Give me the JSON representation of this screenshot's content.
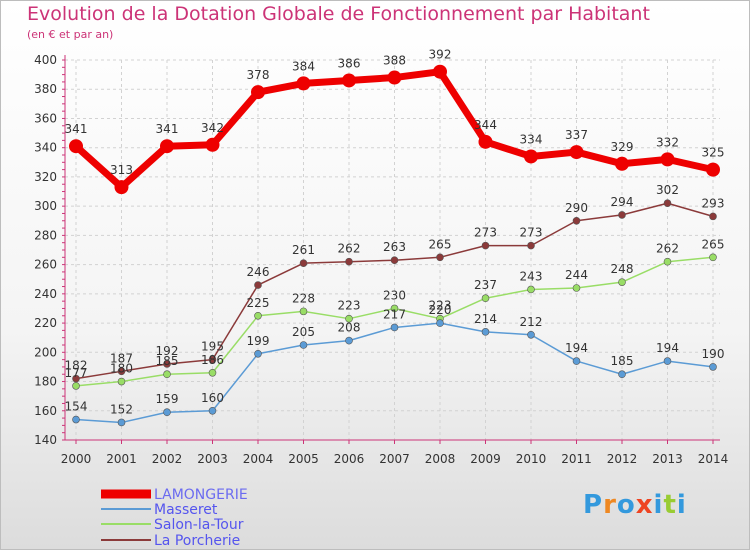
{
  "title": "Evolution de la Dotation Globale de Fonctionnement par Habitant",
  "subtitle": "(en € et par an)",
  "logo_text": "Proxiti",
  "chart_data": {
    "type": "line",
    "x": [
      "2000",
      "2001",
      "2002",
      "2003",
      "2004",
      "2005",
      "2006",
      "2007",
      "2008",
      "2009",
      "2010",
      "2011",
      "2012",
      "2013",
      "2014"
    ],
    "ylim": [
      140,
      400
    ],
    "yticks": [
      140,
      160,
      180,
      200,
      220,
      240,
      260,
      280,
      300,
      320,
      340,
      360,
      380,
      400
    ],
    "grid": true,
    "legend": "bottom-left",
    "series": [
      {
        "name": "LAMONGERIE",
        "color": "#ee0000",
        "values": [
          341,
          313,
          341,
          342,
          378,
          384,
          386,
          388,
          392,
          344,
          334,
          337,
          329,
          332,
          325
        ]
      },
      {
        "name": "Masseret",
        "color": "#5b9bd5",
        "values": [
          154,
          152,
          159,
          160,
          199,
          205,
          208,
          217,
          220,
          214,
          212,
          194,
          185,
          194,
          190
        ]
      },
      {
        "name": "Salon-la-Tour",
        "color": "#99dd66",
        "values": [
          177,
          180,
          185,
          186,
          225,
          228,
          223,
          230,
          223,
          237,
          243,
          244,
          248,
          262,
          265
        ]
      },
      {
        "name": "La Porcherie",
        "color": "#8b3a3a",
        "values": [
          182,
          187,
          192,
          195,
          246,
          261,
          262,
          263,
          265,
          273,
          273,
          290,
          294,
          302,
          293
        ]
      }
    ]
  }
}
